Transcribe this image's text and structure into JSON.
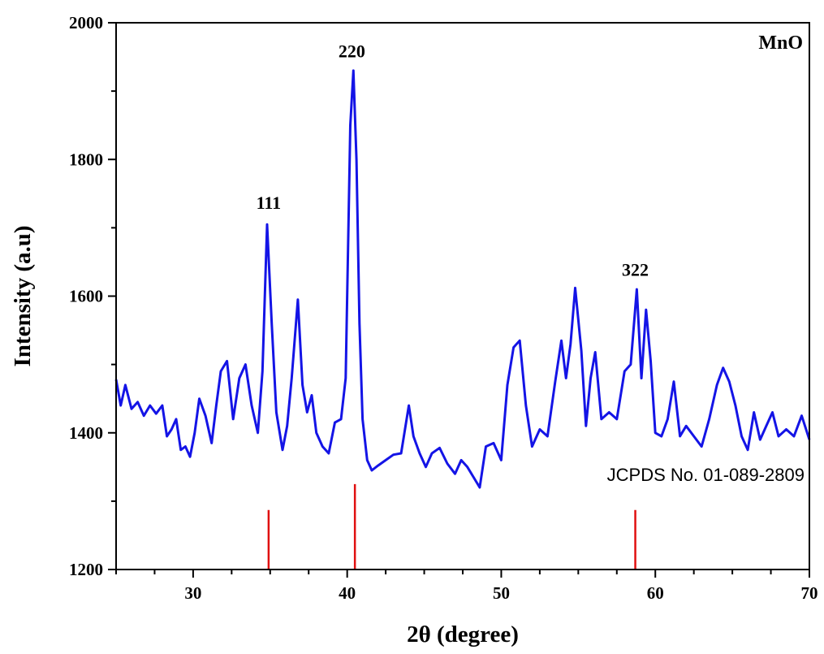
{
  "chart_data": {
    "type": "line",
    "xlabel": "2θ (degree)",
    "ylabel": "Intensity (a.u)",
    "xlim": [
      25,
      70
    ],
    "ylim": [
      1200,
      2000
    ],
    "xticks": [
      30,
      40,
      50,
      60,
      70
    ],
    "yticks": [
      1200,
      1400,
      1600,
      1800,
      2000
    ],
    "series": [
      {
        "name": "MnO",
        "color": "#1414e6",
        "x": [
          25.0,
          25.3,
          25.6,
          26.0,
          26.4,
          26.8,
          27.2,
          27.6,
          28.0,
          28.3,
          28.6,
          28.9,
          29.2,
          29.5,
          29.8,
          30.1,
          30.4,
          30.8,
          31.2,
          31.5,
          31.8,
          32.2,
          32.6,
          33.0,
          33.4,
          33.8,
          34.2,
          34.5,
          34.8,
          35.1,
          35.4,
          35.8,
          36.1,
          36.4,
          36.8,
          37.1,
          37.4,
          37.7,
          38.0,
          38.4,
          38.8,
          39.2,
          39.6,
          39.9,
          40.2,
          40.4,
          40.6,
          40.8,
          41.0,
          41.3,
          41.6,
          42.0,
          42.5,
          43.0,
          43.5,
          44.0,
          44.3,
          44.7,
          45.1,
          45.5,
          46.0,
          46.5,
          47.0,
          47.4,
          47.8,
          48.2,
          48.6,
          49.0,
          49.5,
          50.0,
          50.4,
          50.8,
          51.2,
          51.6,
          52.0,
          52.5,
          53.0,
          53.5,
          53.9,
          54.2,
          54.5,
          54.8,
          55.2,
          55.5,
          55.8,
          56.1,
          56.5,
          57.0,
          57.5,
          58.0,
          58.4,
          58.8,
          59.1,
          59.4,
          59.7,
          60.0,
          60.4,
          60.8,
          61.2,
          61.6,
          62.0,
          62.5,
          63.0,
          63.5,
          64.0,
          64.4,
          64.8,
          65.2,
          65.6,
          66.0,
          66.4,
          66.8,
          67.2,
          67.6,
          68.0,
          68.5,
          69.0,
          69.5,
          70.0
        ],
        "values": [
          1478,
          1440,
          1470,
          1435,
          1445,
          1425,
          1440,
          1428,
          1440,
          1395,
          1405,
          1420,
          1375,
          1380,
          1365,
          1400,
          1450,
          1425,
          1385,
          1440,
          1490,
          1505,
          1420,
          1480,
          1500,
          1440,
          1400,
          1490,
          1705,
          1560,
          1430,
          1375,
          1410,
          1480,
          1595,
          1470,
          1430,
          1455,
          1400,
          1380,
          1370,
          1415,
          1420,
          1480,
          1850,
          1930,
          1800,
          1560,
          1420,
          1360,
          1345,
          1352,
          1360,
          1368,
          1370,
          1440,
          1395,
          1370,
          1350,
          1370,
          1378,
          1355,
          1340,
          1360,
          1350,
          1335,
          1320,
          1380,
          1385,
          1360,
          1470,
          1525,
          1535,
          1440,
          1380,
          1405,
          1395,
          1475,
          1535,
          1480,
          1530,
          1612,
          1520,
          1410,
          1480,
          1518,
          1420,
          1430,
          1420,
          1490,
          1500,
          1610,
          1480,
          1580,
          1505,
          1400,
          1395,
          1420,
          1475,
          1395,
          1410,
          1395,
          1380,
          1420,
          1470,
          1495,
          1475,
          1440,
          1395,
          1375,
          1430,
          1390,
          1410,
          1430,
          1395,
          1405,
          1395,
          1425,
          1390
        ]
      }
    ],
    "reference_lines": {
      "label": "JCPDS No. 01-089-2809",
      "color": "#e01010",
      "bottom": 1200,
      "lines": [
        {
          "x": 34.9,
          "top": 1287
        },
        {
          "x": 40.5,
          "top": 1325
        },
        {
          "x": 58.7,
          "top": 1287
        }
      ]
    },
    "annotations": [
      {
        "text": "111",
        "x": 34.9,
        "y": 1718
      },
      {
        "text": "220",
        "x": 40.3,
        "y": 1940
      },
      {
        "text": "322",
        "x": 58.7,
        "y": 1620
      }
    ],
    "sample_label": "MnO",
    "grid": false,
    "legend": "none"
  }
}
